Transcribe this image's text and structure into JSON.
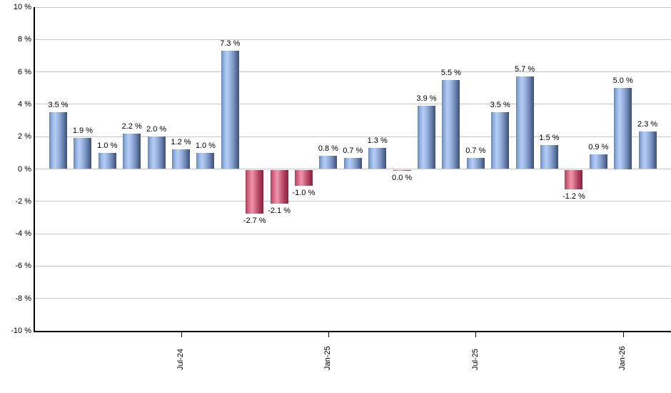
{
  "chart": {
    "background_color": "#ffffff",
    "grid_color": "#c6c6c6",
    "axis_color": "#000000",
    "positive_bar_color": "#7d9fd8",
    "negative_bar_color": "#c34a68"
  },
  "chart_data": {
    "type": "bar",
    "title": "",
    "xlabel": "",
    "ylabel": "",
    "values": [
      3.5,
      1.9,
      1.0,
      2.2,
      2.0,
      1.2,
      1.0,
      7.3,
      -2.7,
      -2.1,
      -1.0,
      0.8,
      0.7,
      1.3,
      -0.04,
      3.9,
      5.5,
      0.7,
      3.5,
      5.7,
      1.5,
      -1.2,
      0.9,
      5.0,
      2.3
    ],
    "bar_labels": [
      "3.5 %",
      "1.9 %",
      "1.0 %",
      "2.2 %",
      "2.0 %",
      "1.2 %",
      "1.0 %",
      "7.3 %",
      "-2.7 %",
      "-2.1 %",
      "-1.0 %",
      "0.8 %",
      "0.7 %",
      "1.3 %",
      "0.0 %",
      "3.9 %",
      "5.5 %",
      "0.7 %",
      "3.5 %",
      "5.7 %",
      "1.5 %",
      "-1.2 %",
      "0.9 %",
      "5.0 %",
      "2.3 %"
    ],
    "x_ticks": [
      {
        "label": "Jul-24",
        "index": 5
      },
      {
        "label": "Jan-25",
        "index": 11
      },
      {
        "label": "Jul-25",
        "index": 17
      },
      {
        "label": "Jan-26",
        "index": 23
      }
    ],
    "y_ticks": [
      {
        "label": "10 %",
        "value": 10
      },
      {
        "label": "8 %",
        "value": 8
      },
      {
        "label": "6 %",
        "value": 6
      },
      {
        "label": "4 %",
        "value": 4
      },
      {
        "label": "2 %",
        "value": 2
      },
      {
        "label": "0 %",
        "value": 0
      },
      {
        "label": "-2 %",
        "value": -2
      },
      {
        "label": "-4 %",
        "value": -4
      },
      {
        "label": "-6 %",
        "value": -6
      },
      {
        "label": "-8 %",
        "value": -8
      },
      {
        "label": "-10 %",
        "value": -10
      }
    ],
    "ylim": [
      -10,
      10
    ],
    "y_step": 2,
    "grid": true,
    "legend": "none"
  }
}
